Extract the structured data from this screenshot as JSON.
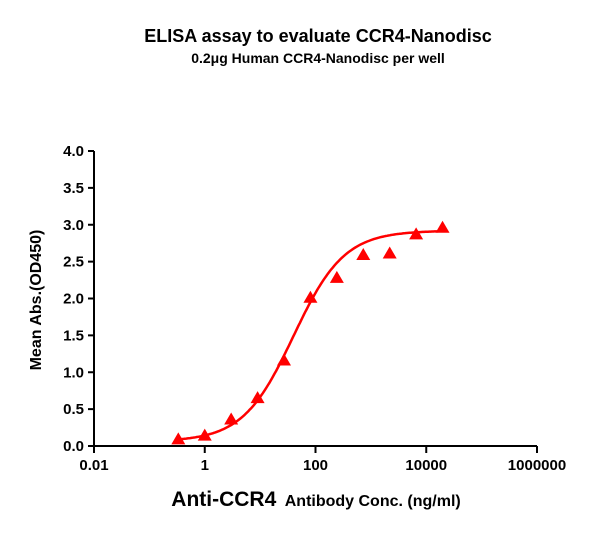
{
  "chart_data": {
    "type": "scatter",
    "title": "ELISA assay to evaluate CCR4-Nanodisc",
    "subtitle": "0.2μg Human CCR4-Nanodisc per well",
    "xlabel_main": "Anti-CCR4",
    "xlabel_rest": "Antibody Conc. (ng/ml)",
    "ylabel": "Mean Abs.(OD450)",
    "xscale": "log",
    "xlim": [
      0.01,
      1000000
    ],
    "ylim": [
      0,
      4.0
    ],
    "xticks": [
      0.01,
      1,
      100,
      10000,
      1000000
    ],
    "xtick_labels": [
      "0.01",
      "1",
      "100",
      "10000",
      "1000000"
    ],
    "yticks": [
      0,
      0.5,
      1.0,
      1.5,
      2.0,
      2.5,
      3.0,
      3.5,
      4.0
    ],
    "ytick_labels": [
      "0.0",
      "0.5",
      "1.0",
      "1.5",
      "2.0",
      "2.5",
      "3.0",
      "3.5",
      "4.0"
    ],
    "grid": false,
    "series": [
      {
        "name": "CCR4-Nanodisc",
        "color": "#ff0000",
        "marker": "triangle",
        "x": [
          0.333,
          1,
          3,
          9,
          27,
          81,
          243,
          729,
          2187,
          6561,
          19683
        ],
        "y": [
          0.09,
          0.14,
          0.36,
          0.65,
          1.16,
          2.01,
          2.28,
          2.59,
          2.61,
          2.87,
          2.96
        ]
      }
    ],
    "fit": {
      "model": "4PL",
      "bottom": 0.06,
      "top": 2.92,
      "ec50": 40,
      "hill": 0.95,
      "x_range": [
        0.333,
        19683
      ]
    }
  }
}
